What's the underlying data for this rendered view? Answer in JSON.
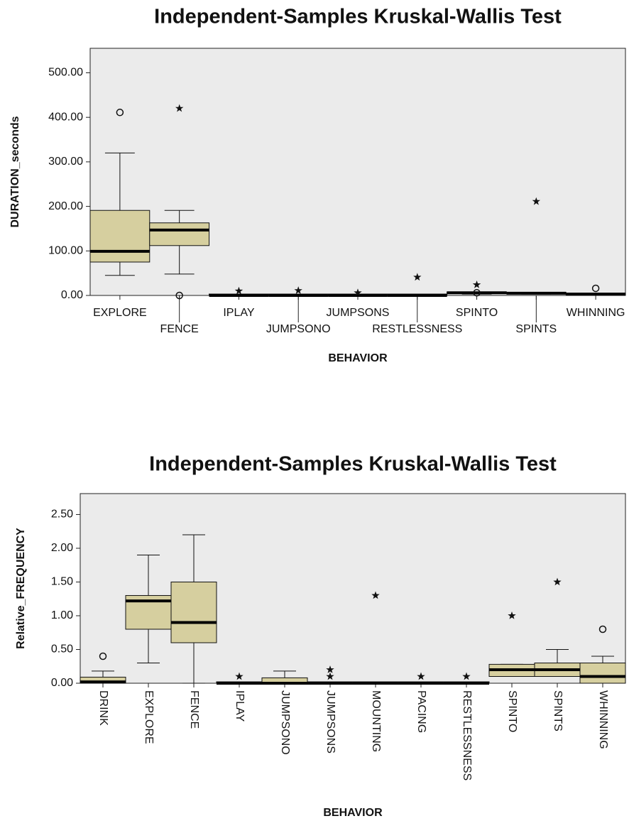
{
  "chart_data": [
    {
      "type": "box",
      "title": "Independent-Samples Kruskal-Wallis Test",
      "x_label": "BEHAVIOR",
      "y_label": "DURATION_seconds",
      "box_color": "#d6cf9f",
      "plot_background": "#ebebeb",
      "x_label_rotation": 0,
      "ylim": [
        0,
        555
      ],
      "yticks": [
        {
          "value": 0,
          "label": "0.00"
        },
        {
          "value": 100,
          "label": "100.00"
        },
        {
          "value": 200,
          "label": "200.00"
        },
        {
          "value": 300,
          "label": "300.00"
        },
        {
          "value": 400,
          "label": "400.00"
        },
        {
          "value": 500,
          "label": "500.00"
        }
      ],
      "categories": [
        "EXPLORE",
        "FENCE",
        "IPLAY",
        "JUMPSONO",
        "JUMPSONS",
        "RESTLESSNESS",
        "SPINTO",
        "SPINTS",
        "WHINNING"
      ],
      "boxes": [
        {
          "min": 45,
          "q1": 75,
          "median": 99,
          "q3": 191,
          "max": 320,
          "outliers": [
            411
          ],
          "extremes": []
        },
        {
          "min": 48,
          "q1": 112,
          "median": 147,
          "q3": 163,
          "max": 191,
          "outliers": [
            0
          ],
          "extremes": [
            420
          ]
        },
        {
          "min": 0,
          "q1": 0,
          "median": 0,
          "q3": 0,
          "max": 0,
          "outliers": [],
          "extremes": [
            10
          ]
        },
        {
          "min": 0,
          "q1": 0,
          "median": 0,
          "q3": 0,
          "max": 0,
          "outliers": [],
          "extremes": [
            11
          ]
        },
        {
          "min": 0,
          "q1": 0,
          "median": 0,
          "q3": 0,
          "max": 0,
          "outliers": [],
          "extremes": [
            6
          ]
        },
        {
          "min": 0,
          "q1": 0,
          "median": 0,
          "q3": 0,
          "max": 0,
          "outliers": [],
          "extremes": [
            41
          ]
        },
        {
          "min": 3,
          "q1": 4,
          "median": 6,
          "q3": 8,
          "max": 8,
          "outliers": [
            6
          ],
          "extremes": [
            24
          ]
        },
        {
          "min": 3,
          "q1": 4,
          "median": 5,
          "q3": 7,
          "max": 7,
          "outliers": [],
          "extremes": [
            211
          ]
        },
        {
          "min": 1,
          "q1": 2,
          "median": 3,
          "q3": 5,
          "max": 5,
          "outliers": [
            16
          ],
          "extremes": []
        }
      ]
    },
    {
      "type": "box",
      "title": "Independent-Samples Kruskal-Wallis Test",
      "x_label": "BEHAVIOR",
      "y_label": "Relative_FREQUENCY",
      "box_color": "#d6cf9f",
      "plot_background": "#ebebeb",
      "x_label_rotation": 90,
      "ylim": [
        0,
        2.81
      ],
      "yticks": [
        {
          "value": 0,
          "label": "0.00"
        },
        {
          "value": 0.5,
          "label": "0.50"
        },
        {
          "value": 1,
          "label": "1.00"
        },
        {
          "value": 1.5,
          "label": "1.50"
        },
        {
          "value": 2,
          "label": "2.00"
        },
        {
          "value": 2.5,
          "label": "2.50"
        }
      ],
      "categories": [
        "DRINK",
        "EXPLORE",
        "FENCE",
        "IPLAY",
        "JUMPSONO",
        "JUMPSONS",
        "MOUNTING",
        "PACING",
        "RESTLESSNESS",
        "SPINTO",
        "SPINTS",
        "WHINNING"
      ],
      "boxes": [
        {
          "min": 0,
          "q1": 0,
          "median": 0.02,
          "q3": 0.09,
          "max": 0.18,
          "outliers": [
            0.4
          ],
          "extremes": []
        },
        {
          "min": 0.3,
          "q1": 0.8,
          "median": 1.22,
          "q3": 1.3,
          "max": 1.9,
          "outliers": [],
          "extremes": []
        },
        {
          "min": 0,
          "q1": 0.6,
          "median": 0.9,
          "q3": 1.5,
          "max": 2.2,
          "outliers": [],
          "extremes": []
        },
        {
          "min": 0,
          "q1": 0,
          "median": 0,
          "q3": 0,
          "max": 0,
          "outliers": [],
          "extremes": [
            0.1
          ]
        },
        {
          "min": 0,
          "q1": 0,
          "median": 0,
          "q3": 0.08,
          "max": 0.18,
          "outliers": [],
          "extremes": []
        },
        {
          "min": 0,
          "q1": 0,
          "median": 0,
          "q3": 0,
          "max": 0,
          "outliers": [],
          "extremes": [
            0.2,
            0.1
          ]
        },
        {
          "min": 0,
          "q1": 0,
          "median": 0,
          "q3": 0,
          "max": 0,
          "outliers": [],
          "extremes": [
            1.3
          ]
        },
        {
          "min": 0,
          "q1": 0,
          "median": 0,
          "q3": 0,
          "max": 0,
          "outliers": [],
          "extremes": [
            0.1
          ]
        },
        {
          "min": 0,
          "q1": 0,
          "median": 0,
          "q3": 0,
          "max": 0,
          "outliers": [],
          "extremes": [
            0.1
          ]
        },
        {
          "min": 0.1,
          "q1": 0.1,
          "median": 0.2,
          "q3": 0.28,
          "max": 0.28,
          "outliers": [],
          "extremes": [
            1.0
          ]
        },
        {
          "min": 0.1,
          "q1": 0.1,
          "median": 0.2,
          "q3": 0.3,
          "max": 0.5,
          "outliers": [],
          "extremes": [
            1.5
          ]
        },
        {
          "min": 0,
          "q1": 0,
          "median": 0.1,
          "q3": 0.3,
          "max": 0.4,
          "outliers": [
            0.8
          ],
          "extremes": []
        }
      ]
    }
  ]
}
